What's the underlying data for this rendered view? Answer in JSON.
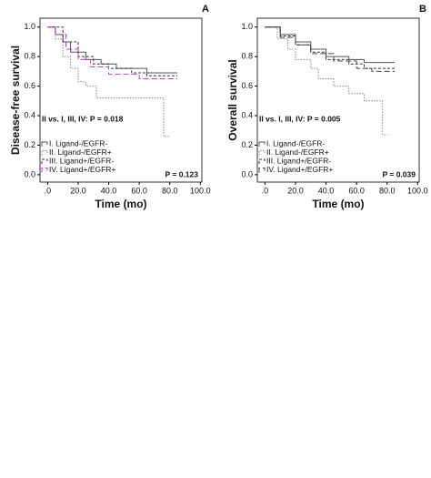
{
  "chart_data": [
    {
      "type": "line",
      "step": true,
      "panel_label": "A",
      "ylabel": "Disease-free survival",
      "xlabel": "Time (mo)",
      "annotation": "II vs. I, III, IV: P = 0.018",
      "annotation2": "P = 0.123",
      "xlim": [
        -5,
        101
      ],
      "ylim": [
        -0.05,
        1.06
      ],
      "xticks": [
        {
          "value": 0,
          "label": ".0"
        },
        {
          "value": 20,
          "label": "20.0"
        },
        {
          "value": 40,
          "label": "40.0"
        },
        {
          "value": 60,
          "label": "60.0"
        },
        {
          "value": 80,
          "label": "80.0"
        },
        {
          "value": 100,
          "label": "100.0"
        }
      ],
      "yticks": [
        {
          "value": 0,
          "label": "0.0"
        },
        {
          "value": 0.2,
          "label": "0.2"
        },
        {
          "value": 0.4,
          "label": "0.4"
        },
        {
          "value": 0.6,
          "label": "0.6"
        },
        {
          "value": 0.8,
          "label": "0.8"
        },
        {
          "value": 1,
          "label": "1.0"
        }
      ],
      "series": [
        {
          "name": "I. Ligand-/EGFR-",
          "color": "#555555",
          "dash": "none",
          "x": [
            0,
            5,
            10,
            15,
            25,
            35,
            45,
            65,
            85
          ],
          "values": [
            1.0,
            0.95,
            0.9,
            0.83,
            0.78,
            0.75,
            0.72,
            0.69,
            0.69
          ]
        },
        {
          "name": "II. Ligand-/EGFR+",
          "color": "#888888",
          "dash": "1.5 1.5",
          "x": [
            0,
            5,
            10,
            15,
            20,
            25,
            32,
            76,
            80
          ],
          "values": [
            1.0,
            0.92,
            0.8,
            0.72,
            0.63,
            0.6,
            0.52,
            0.26,
            0.26
          ]
        },
        {
          "name": "III. Ligand+/EGFR-",
          "color": "#333333",
          "dash": "3 2",
          "x": [
            0,
            10,
            20,
            30,
            40,
            55,
            65,
            85
          ],
          "values": [
            1.0,
            0.9,
            0.8,
            0.75,
            0.72,
            0.69,
            0.67,
            0.67
          ]
        },
        {
          "name": "IV. Ligand+/EGFR+",
          "color": "#c040c0",
          "dash": "6 3",
          "x": [
            0,
            5,
            12,
            20,
            28,
            40,
            60,
            85
          ],
          "values": [
            1.0,
            0.95,
            0.85,
            0.78,
            0.73,
            0.68,
            0.65,
            0.65
          ]
        }
      ]
    },
    {
      "type": "line",
      "step": true,
      "panel_label": "B",
      "ylabel": "Overall survival",
      "xlabel": "Time (mo)",
      "annotation": "II vs. I, III, IV: P = 0.005",
      "annotation2": "P = 0.039",
      "xlim": [
        -5,
        101
      ],
      "ylim": [
        -0.05,
        1.06
      ],
      "xticks": [
        {
          "value": 0,
          "label": ".0"
        },
        {
          "value": 20,
          "label": "20.0"
        },
        {
          "value": 40,
          "label": "40.0"
        },
        {
          "value": 60,
          "label": "60.0"
        },
        {
          "value": 80,
          "label": "80.0"
        },
        {
          "value": 100,
          "label": "100.0"
        }
      ],
      "yticks": [
        {
          "value": 0,
          "label": "0.0"
        },
        {
          "value": 0.2,
          "label": "0.2"
        },
        {
          "value": 0.4,
          "label": "0.4"
        },
        {
          "value": 0.6,
          "label": "0.6"
        },
        {
          "value": 0.8,
          "label": "0.8"
        },
        {
          "value": 1,
          "label": "1.0"
        }
      ],
      "series": [
        {
          "name": "I. Ligand-/EGFR-",
          "color": "#555555",
          "dash": "none",
          "x": [
            0,
            10,
            20,
            30,
            40,
            55,
            65,
            85
          ],
          "values": [
            1.0,
            0.95,
            0.9,
            0.85,
            0.8,
            0.78,
            0.76,
            0.76
          ]
        },
        {
          "name": "II. Ligand-/EGFR+",
          "color": "#888888",
          "dash": "1.5 1.5",
          "x": [
            0,
            8,
            15,
            20,
            30,
            35,
            45,
            55,
            65,
            77,
            80
          ],
          "values": [
            1.0,
            0.92,
            0.85,
            0.78,
            0.72,
            0.65,
            0.6,
            0.55,
            0.5,
            0.27,
            0.27
          ]
        },
        {
          "name": "III. Ligand+/EGFR-",
          "color": "#333333",
          "dash": "3 2",
          "x": [
            0,
            10,
            20,
            30,
            40,
            55,
            65,
            85
          ],
          "values": [
            1.0,
            0.94,
            0.88,
            0.83,
            0.78,
            0.75,
            0.72,
            0.72
          ]
        },
        {
          "name": "IV. Ligand+/EGFR+",
          "color": "#444444",
          "dash": "6 3",
          "x": [
            0,
            10,
            20,
            30,
            45,
            60,
            70,
            85
          ],
          "values": [
            1.0,
            0.93,
            0.88,
            0.82,
            0.77,
            0.72,
            0.7,
            0.7
          ]
        }
      ]
    }
  ]
}
